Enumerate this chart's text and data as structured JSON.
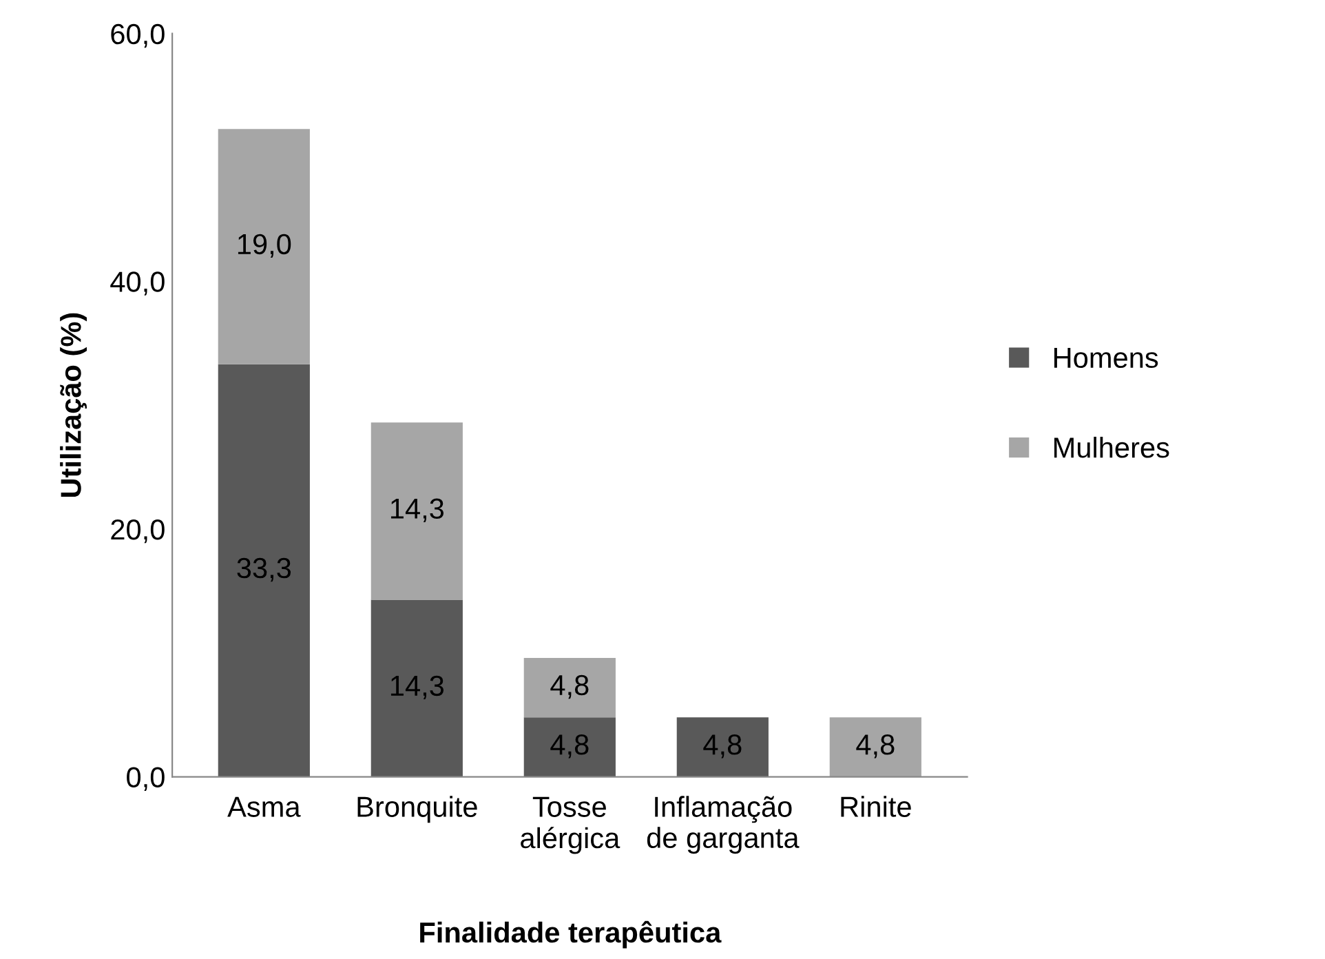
{
  "chart_data": {
    "type": "bar",
    "stacked": true,
    "xlabel": "Finalidade terapêutica",
    "ylabel": "Utilização (%)",
    "categories": [
      "Asma",
      "Bronquite",
      "Tosse\nalérgica",
      "Inflamação\nde garganta",
      "Rinite"
    ],
    "series": [
      {
        "name": "Homens",
        "color": "#595959",
        "values": [
          33.3,
          14.3,
          4.8,
          4.8,
          null
        ],
        "value_labels": [
          "33,3",
          "14,3",
          "4,8",
          "4,8",
          null
        ]
      },
      {
        "name": "Mulheres",
        "color": "#a6a6a6",
        "values": [
          19.0,
          14.3,
          4.8,
          null,
          4.8
        ],
        "value_labels": [
          "19,0",
          "14,3",
          "4,8",
          null,
          "4,8"
        ]
      }
    ],
    "ylim": [
      0,
      60
    ],
    "yticks": [
      {
        "value": 0,
        "label": "0,0"
      },
      {
        "value": 20,
        "label": "20,0"
      },
      {
        "value": 40,
        "label": "40,0"
      },
      {
        "value": 60,
        "label": "60,0"
      }
    ],
    "grid": false,
    "legend": "right"
  }
}
